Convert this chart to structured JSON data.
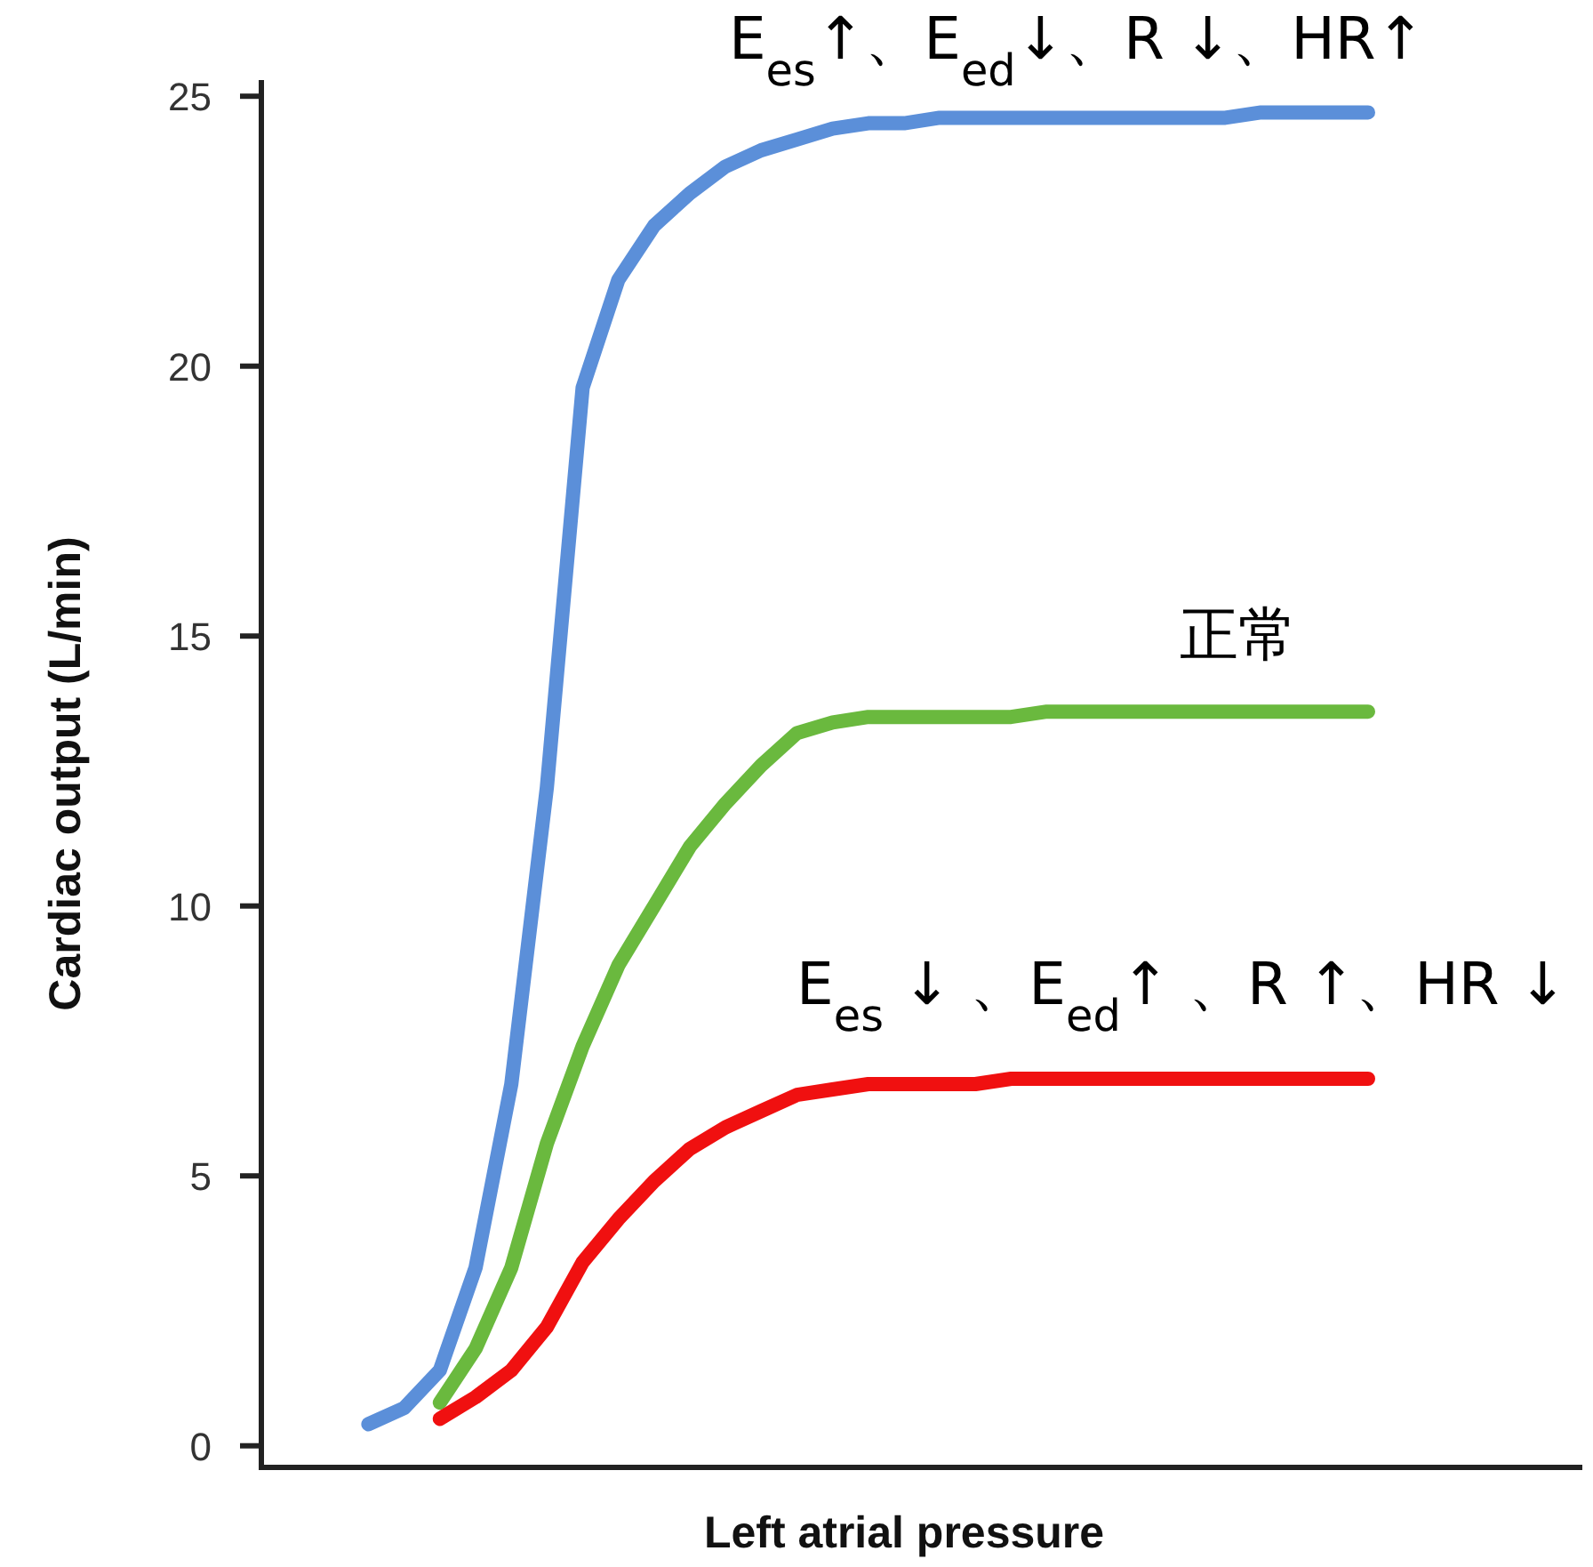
{
  "chart_data": {
    "type": "line",
    "xlabel": "Left atrial pressure",
    "ylabel": "Cardiac output (L/min)",
    "categories": [
      null,
      null,
      null,
      null,
      null,
      null,
      null,
      null,
      null,
      null,
      null,
      null,
      null,
      null,
      null,
      null,
      null,
      null,
      null,
      null,
      null,
      null,
      null,
      null,
      null,
      null,
      null,
      null,
      null,
      null,
      null,
      null,
      null,
      null,
      null,
      null
    ],
    "ylim": [
      -0.4,
      25.3
    ],
    "yticks": [
      0,
      5,
      10,
      15,
      20,
      25
    ],
    "grid": false,
    "legend": false,
    "marker": "none",
    "line_style": "solid",
    "series": [
      {
        "name": "E$_{es}$↑、E$_{ed}$↓、R ↓、HR↑",
        "color": "#5b8fd9",
        "values": [
          null,
          null,
          0.4,
          0.7,
          1.4,
          3.3,
          6.7,
          12.2,
          19.6,
          21.6,
          22.6,
          23.2,
          23.7,
          24.0,
          24.2,
          24.4,
          24.5,
          24.5,
          24.6,
          24.6,
          24.6,
          24.6,
          24.6,
          24.6,
          24.6,
          24.6,
          24.6,
          24.7,
          24.7,
          24.7,
          24.7,
          null,
          null,
          null,
          null,
          null
        ]
      },
      {
        "name": "正常",
        "color": "#6ab93e",
        "values": [
          null,
          null,
          null,
          null,
          0.8,
          1.8,
          3.3,
          5.6,
          7.4,
          8.9,
          10.0,
          11.1,
          11.9,
          12.6,
          13.2,
          13.4,
          13.5,
          13.5,
          13.5,
          13.5,
          13.5,
          13.6,
          13.6,
          13.6,
          13.6,
          13.6,
          13.6,
          13.6,
          13.6,
          13.6,
          13.6,
          null,
          null,
          null,
          null,
          null
        ]
      },
      {
        "name": "E$_{es}$ ↓ 、E$_{ed}$↑ 、R ↑、HR ↓",
        "color": "#f01010",
        "values": [
          null,
          null,
          null,
          null,
          0.5,
          0.9,
          1.4,
          2.2,
          3.4,
          4.2,
          4.9,
          5.5,
          5.9,
          6.2,
          6.5,
          6.6,
          6.7,
          6.7,
          6.7,
          6.7,
          6.8,
          6.8,
          6.8,
          6.8,
          6.8,
          6.8,
          6.8,
          6.8,
          6.8,
          6.8,
          6.8,
          null,
          null,
          null,
          null,
          null
        ]
      }
    ]
  }
}
